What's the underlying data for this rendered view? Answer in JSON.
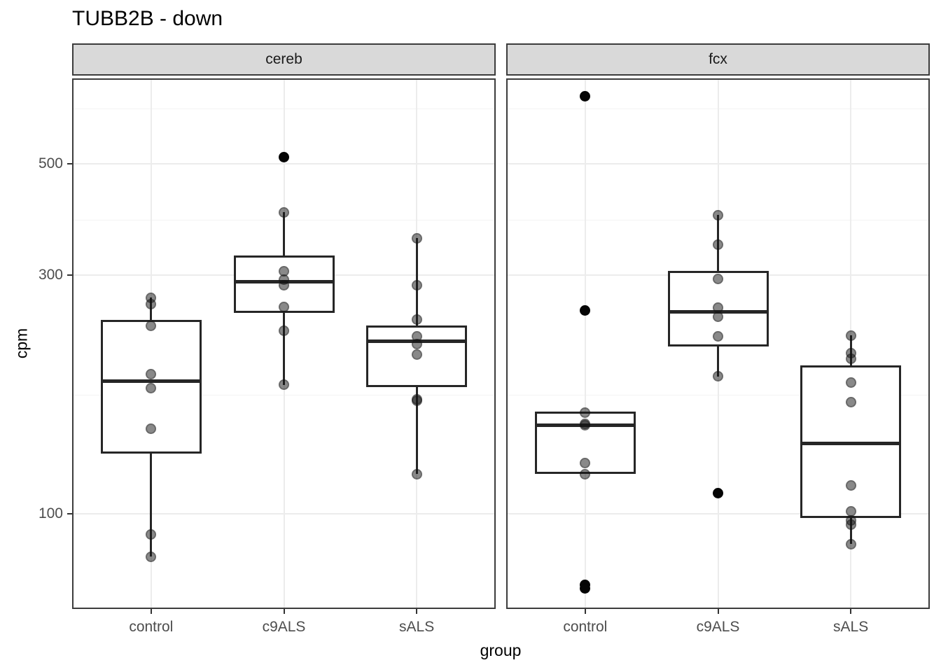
{
  "title": "TUBB2B - down",
  "axes": {
    "x_title": "group",
    "y_title": "cpm"
  },
  "colors": {
    "strip_background": "#d9d9d9",
    "panel_border": "#3c3c3c",
    "box_stroke": "#262626",
    "point_fill": "rgba(20,20,20,0.50)",
    "outlier_fill": "#050505",
    "grid_major": "#ececec",
    "grid_minor": "#f4f4f4",
    "tick_label": "#4d4d4d"
  },
  "chart_data": {
    "type": "boxplot",
    "title": "TUBB2B - down",
    "xlabel": "group",
    "ylabel": "cpm",
    "y_scale": "log10",
    "y_breaks": [
      100,
      300,
      500
    ],
    "y_minor_breaks": [
      173,
      387,
      645
    ],
    "y_range_shown": [
      64,
      745
    ],
    "grid": true,
    "categories": [
      "control",
      "c9ALS",
      "sALS"
    ],
    "facets": [
      {
        "label": "cereb",
        "groups": [
          {
            "name": "control",
            "box": {
              "q1": 132,
              "median": 184,
              "q3": 244
            },
            "whiskers": {
              "lower": 82,
              "upper": 270
            },
            "points": [
              270,
              262,
              237,
              190,
              178,
              148,
              91,
              82
            ],
            "outliers": []
          },
          {
            "name": "c9ALS",
            "box": {
              "q1": 252,
              "median": 291,
              "q3": 328
            },
            "whiskers": {
              "lower": 181,
              "upper": 400
            },
            "points": [
              400,
              305,
              293,
              286,
              259,
              232,
              181
            ],
            "outliers": [
              515
            ]
          },
          {
            "name": "sALS",
            "box": {
              "q1": 179,
              "median": 221,
              "q3": 238
            },
            "whiskers": {
              "lower": 120,
              "upper": 355
            },
            "points": [
              355,
              286,
              244,
              226,
              218,
              208,
              169,
              168,
              120
            ],
            "outliers": []
          }
        ]
      },
      {
        "label": "fcx",
        "groups": [
          {
            "name": "control",
            "box": {
              "q1": 120,
              "median": 150,
              "q3": 160
            },
            "whiskers": {
              "lower": null,
              "upper": null
            },
            "points": [
              159,
              151,
              150,
              126,
              120
            ],
            "outliers": [
              683,
              255,
              72,
              71
            ]
          },
          {
            "name": "c9ALS",
            "box": {
              "q1": 216,
              "median": 253,
              "q3": 305
            },
            "whiskers": {
              "lower": 188,
              "upper": 395
            },
            "points": [
              395,
              345,
              294,
              258,
              247,
              226,
              188
            ],
            "outliers": [
              110
            ]
          },
          {
            "name": "sALS",
            "box": {
              "q1": 98,
              "median": 138,
              "q3": 198
            },
            "whiskers": {
              "lower": 87,
              "upper": 227
            },
            "points": [
              227,
              209,
              204,
              183,
              167,
              114,
              101,
              97,
              95,
              87
            ],
            "outliers": []
          }
        ]
      }
    ]
  }
}
